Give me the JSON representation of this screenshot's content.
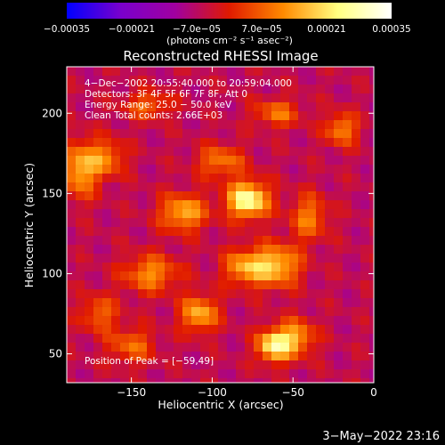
{
  "chart_data": {
    "type": "heatmap",
    "title": "Reconstructed RHESSI Image",
    "xlabel": "Heliocentric X (arcsec)",
    "ylabel": "Heliocentric Y (arcsec)",
    "xlim": [
      -190,
      0
    ],
    "ylim": [
      32,
      229
    ],
    "x_ticks": [
      {
        "value": -150,
        "label": "−150"
      },
      {
        "value": -100,
        "label": "−100"
      },
      {
        "value": -50,
        "label": "−50"
      },
      {
        "value": 0,
        "label": "0"
      }
    ],
    "y_ticks": [
      {
        "value": 50,
        "label": "50"
      },
      {
        "value": 100,
        "label": "100"
      },
      {
        "value": 150,
        "label": "150"
      },
      {
        "value": 200,
        "label": "200"
      }
    ],
    "colorbar": {
      "min": -0.00035,
      "max": 0.00035,
      "tick_labels": [
        "−0.00035",
        "−0.00021",
        "−7.0e−05",
        "7.0e−05",
        "0.00021",
        "0.00035"
      ],
      "unit_label": "(photons cm⁻² s⁻¹ asec⁻²)",
      "colors": [
        "#0000ff",
        "#7a00cc",
        "#a000a0",
        "#e01a00",
        "#ff8a00",
        "#ffff80",
        "#ffffff"
      ]
    },
    "annotations": [
      "4−Dec−2002 20:55:40.000 to 20:59:04.000",
      "Detectors: 3F 4F 5F 6F 7F 8F, Att 0",
      "Energy Range: 25.0 − 50.0 keV",
      "Clean     Total counts: 2.66E+03"
    ],
    "peak_label": "Position of Peak = [−59,49]",
    "peak_position": [
      -59,
      49
    ],
    "blobs": [
      {
        "x": -78,
        "y": 146,
        "amp": 0.00034,
        "sx": 9,
        "sy": 8
      },
      {
        "x": -118,
        "y": 138,
        "amp": 0.00022,
        "sx": 10,
        "sy": 8
      },
      {
        "x": -60,
        "y": 105,
        "amp": 0.00024,
        "sx": 10,
        "sy": 9
      },
      {
        "x": -80,
        "y": 104,
        "amp": 0.0002,
        "sx": 9,
        "sy": 8
      },
      {
        "x": -138,
        "y": 100,
        "amp": 0.00018,
        "sx": 12,
        "sy": 8
      },
      {
        "x": -108,
        "y": 75,
        "amp": 0.00022,
        "sx": 8,
        "sy": 8
      },
      {
        "x": -62,
        "y": 55,
        "amp": 0.0003,
        "sx": 7,
        "sy": 7
      },
      {
        "x": -48,
        "y": 60,
        "amp": 0.0002,
        "sx": 8,
        "sy": 8
      },
      {
        "x": -182,
        "y": 165,
        "amp": 0.00022,
        "sx": 8,
        "sy": 12
      },
      {
        "x": -165,
        "y": 172,
        "amp": 0.00016,
        "sx": 8,
        "sy": 8
      },
      {
        "x": -95,
        "y": 170,
        "amp": 0.00016,
        "sx": 10,
        "sy": 7
      },
      {
        "x": -40,
        "y": 135,
        "amp": 0.00016,
        "sx": 8,
        "sy": 10
      },
      {
        "x": -20,
        "y": 190,
        "amp": 0.00018,
        "sx": 7,
        "sy": 7
      },
      {
        "x": -60,
        "y": 200,
        "amp": 0.00015,
        "sx": 10,
        "sy": 6
      },
      {
        "x": -150,
        "y": 55,
        "amp": 0.00014,
        "sx": 10,
        "sy": 8
      },
      {
        "x": -170,
        "y": 75,
        "amp": 0.00014,
        "sx": 8,
        "sy": 8
      },
      {
        "x": -140,
        "y": 205,
        "amp": 0.00014,
        "sx": 10,
        "sy": 6
      }
    ]
  },
  "footer": {
    "timestamp": "3−May−2022 23:16"
  }
}
